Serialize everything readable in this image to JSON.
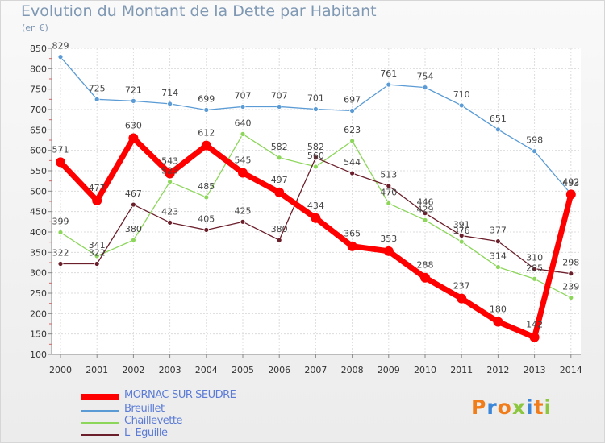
{
  "title": "Evolution du Montant de la Dette par Habitant",
  "unit_label": "(en €)",
  "logo": {
    "text": "Proxiti",
    "letters": [
      "P",
      "r",
      "o",
      "x",
      "i",
      "t",
      "i"
    ],
    "colors": [
      "#f07d1a",
      "#3b86d8",
      "#f07d1a",
      "#8dc63f",
      "#3b86d8",
      "#f07d1a",
      "#8dc63f"
    ]
  },
  "chart_data": {
    "type": "line",
    "x": [
      "2000",
      "2001",
      "2002",
      "2003",
      "2004",
      "2005",
      "2006",
      "2007",
      "2008",
      "2009",
      "2010",
      "2011",
      "2012",
      "2013",
      "2014"
    ],
    "ylim": [
      100,
      850
    ],
    "yticks": [
      100,
      150,
      200,
      250,
      300,
      350,
      400,
      450,
      500,
      550,
      600,
      650,
      700,
      750,
      800,
      850
    ],
    "grid": true,
    "legend_position": "bottom-left",
    "series": [
      {
        "name": "MORNAC-SUR-SEUDRE",
        "color": "#ff0000",
        "values": [
          571,
          477,
          630,
          543,
          612,
          545,
          497,
          434,
          365,
          353,
          288,
          237,
          180,
          142,
          492
        ]
      },
      {
        "name": "Breuillet",
        "color": "#5a9bd5",
        "values": [
          829,
          725,
          721,
          714,
          699,
          707,
          707,
          701,
          697,
          761,
          754,
          710,
          651,
          598,
          493
        ]
      },
      {
        "name": "Chaillevette",
        "color": "#8cd65a",
        "values": [
          399,
          341,
          380,
          523,
          485,
          640,
          582,
          560,
          623,
          470,
          429,
          376,
          314,
          285,
          239
        ]
      },
      {
        "name": "L' Eguille",
        "color": "#6b1f2b",
        "values": [
          322,
          322,
          467,
          423,
          405,
          425,
          380,
          582,
          544,
          513,
          446,
          391,
          377,
          310,
          298
        ]
      }
    ]
  }
}
